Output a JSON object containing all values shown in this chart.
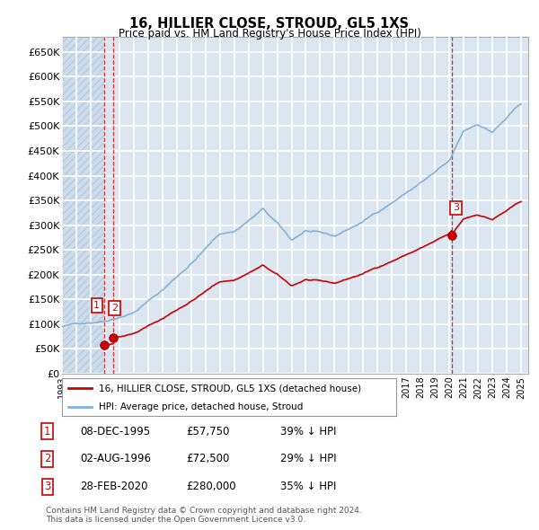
{
  "title": "16, HILLIER CLOSE, STROUD, GL5 1XS",
  "subtitle": "Price paid vs. HM Land Registry's House Price Index (HPI)",
  "ylabel_ticks": [
    "£0",
    "£50K",
    "£100K",
    "£150K",
    "£200K",
    "£250K",
    "£300K",
    "£350K",
    "£400K",
    "£450K",
    "£500K",
    "£550K",
    "£600K",
    "£650K"
  ],
  "ytick_values": [
    0,
    50000,
    100000,
    150000,
    200000,
    250000,
    300000,
    350000,
    400000,
    450000,
    500000,
    550000,
    600000,
    650000
  ],
  "xmin": 1993.0,
  "xmax": 2025.5,
  "ymin": 0,
  "ymax": 680000,
  "plot_bg_color": "#dce6f1",
  "grid_color": "#ffffff",
  "hpi_line_color": "#7fb2db",
  "price_line_color": "#cc0000",
  "price_dot_color": "#cc0000",
  "highlight_bg": "#e8f0f8",
  "transactions": [
    {
      "id": 1,
      "date_x": 1995.93,
      "price": 57750
    },
    {
      "id": 2,
      "date_x": 1996.58,
      "price": 72500
    },
    {
      "id": 3,
      "date_x": 2020.16,
      "price": 280000
    }
  ],
  "transaction_labels": [
    {
      "id": "1",
      "date": "08-DEC-1995",
      "price": "£57,750",
      "note": "39% ↓ HPI"
    },
    {
      "id": "2",
      "date": "02-AUG-1996",
      "price": "£72,500",
      "note": "29% ↓ HPI"
    },
    {
      "id": "3",
      "date": "28-FEB-2020",
      "price": "£280,000",
      "note": "35% ↓ HPI"
    }
  ],
  "legend_price": "16, HILLIER CLOSE, STROUD, GL5 1XS (detached house)",
  "legend_hpi": "HPI: Average price, detached house, Stroud",
  "footnote": "Contains HM Land Registry data © Crown copyright and database right 2024.\nThis data is licensed under the Open Government Licence v3.0."
}
